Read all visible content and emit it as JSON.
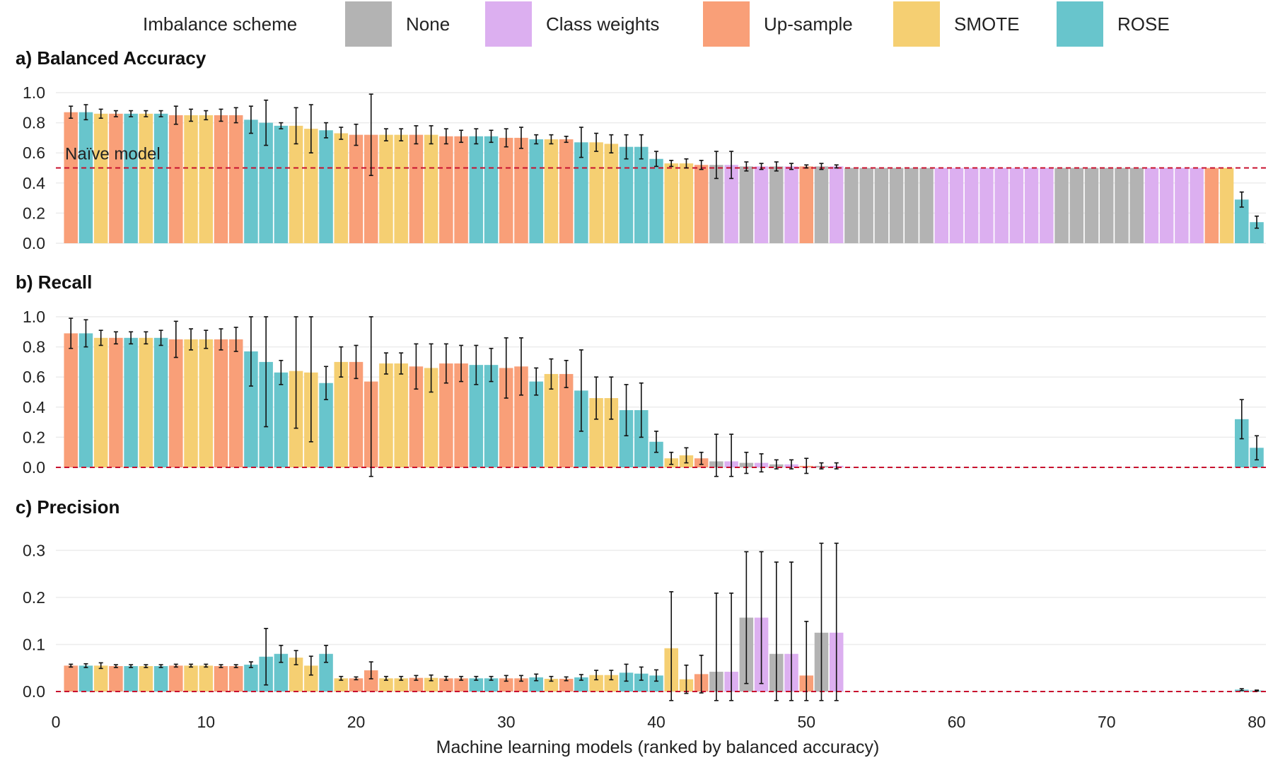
{
  "legend": {
    "title": "Imbalance scheme",
    "items": [
      {
        "key": "none",
        "label": "None",
        "color": "#b3b3b3"
      },
      {
        "key": "cw",
        "label": "Class weights",
        "color": "#dcaff0"
      },
      {
        "key": "up",
        "label": "Up-sample",
        "color": "#f99f78"
      },
      {
        "key": "smote",
        "label": "SMOTE",
        "color": "#f5cf72"
      },
      {
        "key": "rose",
        "label": "ROSE",
        "color": "#68c5cc"
      }
    ]
  },
  "chart_data": {
    "type": "bar",
    "xlabel": "Machine learning models (ranked by balanced accuracy)",
    "xlim": [
      0,
      80
    ],
    "xticks": [
      0,
      10,
      20,
      30,
      40,
      50,
      60,
      70,
      80
    ],
    "annotation": "Naïve model",
    "schemes": [
      "up",
      "rose",
      "smote",
      "up",
      "rose",
      "smote",
      "rose",
      "up",
      "smote",
      "smote",
      "up",
      "up",
      "rose",
      "rose",
      "rose",
      "smote",
      "smote",
      "rose",
      "smote",
      "up",
      "up",
      "smote",
      "smote",
      "up",
      "smote",
      "up",
      "up",
      "rose",
      "rose",
      "up",
      "up",
      "rose",
      "smote",
      "up",
      "rose",
      "smote",
      "smote",
      "rose",
      "rose",
      "rose",
      "smote",
      "smote",
      "up",
      "none",
      "cw",
      "none",
      "cw",
      "none",
      "cw",
      "up",
      "none",
      "cw",
      "none",
      "none",
      "none",
      "none",
      "none",
      "none",
      "cw",
      "cw",
      "cw",
      "cw",
      "cw",
      "cw",
      "cw",
      "cw",
      "none",
      "none",
      "none",
      "none",
      "none",
      "none",
      "cw",
      "cw",
      "cw",
      "cw",
      "up",
      "smote",
      "rose",
      "rose"
    ],
    "panels": [
      {
        "title": "a) Balanced Accuracy",
        "ylim": [
          0,
          1.0
        ],
        "yticks": [
          0.0,
          0.2,
          0.4,
          0.6,
          0.8,
          1.0
        ],
        "ytick_labels": [
          "0.0",
          "0.2",
          "0.4",
          "0.6",
          "0.8",
          "1.0"
        ],
        "reference_line": 0.5,
        "values": [
          0.87,
          0.87,
          0.86,
          0.86,
          0.86,
          0.86,
          0.86,
          0.85,
          0.85,
          0.85,
          0.85,
          0.85,
          0.82,
          0.8,
          0.78,
          0.78,
          0.76,
          0.75,
          0.73,
          0.72,
          0.72,
          0.72,
          0.72,
          0.72,
          0.72,
          0.71,
          0.71,
          0.71,
          0.71,
          0.7,
          0.7,
          0.69,
          0.69,
          0.69,
          0.67,
          0.67,
          0.66,
          0.64,
          0.64,
          0.56,
          0.53,
          0.53,
          0.52,
          0.52,
          0.52,
          0.51,
          0.51,
          0.51,
          0.51,
          0.51,
          0.51,
          0.51,
          0.5,
          0.5,
          0.5,
          0.5,
          0.5,
          0.5,
          0.5,
          0.5,
          0.5,
          0.5,
          0.5,
          0.5,
          0.5,
          0.5,
          0.5,
          0.5,
          0.5,
          0.5,
          0.5,
          0.5,
          0.5,
          0.5,
          0.5,
          0.5,
          0.5,
          0.5,
          0.29,
          0.14
        ],
        "errors": [
          0.04,
          0.05,
          0.03,
          0.02,
          0.02,
          0.02,
          0.02,
          0.06,
          0.04,
          0.03,
          0.04,
          0.05,
          0.09,
          0.15,
          0.02,
          0.12,
          0.16,
          0.05,
          0.04,
          0.07,
          0.27,
          0.04,
          0.04,
          0.06,
          0.06,
          0.05,
          0.04,
          0.05,
          0.04,
          0.06,
          0.07,
          0.03,
          0.03,
          0.02,
          0.1,
          0.06,
          0.06,
          0.08,
          0.08,
          0.05,
          0.02,
          0.03,
          0.03,
          0.09,
          0.09,
          0.03,
          0.02,
          0.03,
          0.02,
          0.01,
          0.02,
          0.01,
          0,
          0,
          0,
          0,
          0,
          0,
          0,
          0,
          0,
          0,
          0,
          0,
          0,
          0,
          0,
          0,
          0,
          0,
          0,
          0,
          0,
          0,
          0,
          0,
          0,
          0,
          0.05,
          0.04
        ]
      },
      {
        "title": "b) Recall",
        "ylim": [
          0,
          1.0
        ],
        "yticks": [
          0.0,
          0.2,
          0.4,
          0.6,
          0.8,
          1.0
        ],
        "ytick_labels": [
          "0.0",
          "0.2",
          "0.4",
          "0.6",
          "0.8",
          "1.0"
        ],
        "reference_line": 0.0,
        "values": [
          0.89,
          0.89,
          0.86,
          0.86,
          0.86,
          0.86,
          0.86,
          0.85,
          0.85,
          0.85,
          0.85,
          0.85,
          0.77,
          0.7,
          0.63,
          0.64,
          0.63,
          0.56,
          0.7,
          0.7,
          0.57,
          0.69,
          0.69,
          0.67,
          0.66,
          0.69,
          0.69,
          0.68,
          0.68,
          0.66,
          0.67,
          0.57,
          0.62,
          0.62,
          0.51,
          0.46,
          0.46,
          0.38,
          0.38,
          0.17,
          0.06,
          0.08,
          0.06,
          0.04,
          0.04,
          0.03,
          0.03,
          0.02,
          0.02,
          0.01,
          0.01,
          0.01,
          0,
          0,
          0,
          0,
          0,
          0,
          0,
          0,
          0,
          0,
          0,
          0,
          0,
          0,
          0,
          0,
          0,
          0,
          0,
          0,
          0,
          0,
          0,
          0,
          0,
          0,
          0.32,
          0.13
        ],
        "errors": [
          0.1,
          0.09,
          0.05,
          0.04,
          0.04,
          0.04,
          0.05,
          0.12,
          0.07,
          0.06,
          0.07,
          0.08,
          0.23,
          0.43,
          0.08,
          0.38,
          0.46,
          0.11,
          0.1,
          0.11,
          0.64,
          0.07,
          0.07,
          0.15,
          0.16,
          0.13,
          0.12,
          0.13,
          0.11,
          0.2,
          0.19,
          0.09,
          0.1,
          0.09,
          0.27,
          0.14,
          0.14,
          0.17,
          0.18,
          0.07,
          0.04,
          0.05,
          0.04,
          0.18,
          0.18,
          0.07,
          0.06,
          0.03,
          0.03,
          0.05,
          0.02,
          0.02,
          0,
          0,
          0,
          0,
          0,
          0,
          0,
          0,
          0,
          0,
          0,
          0,
          0,
          0,
          0,
          0,
          0,
          0,
          0,
          0,
          0,
          0,
          0,
          0,
          0,
          0,
          0.13,
          0.08
        ]
      },
      {
        "title": "c) Precision",
        "ylim": [
          0,
          0.32
        ],
        "yticks": [
          0.0,
          0.1,
          0.2,
          0.3
        ],
        "ytick_labels": [
          "0.0",
          "0.1",
          "0.2",
          "0.3"
        ],
        "reference_line": 0.0,
        "values": [
          0.055,
          0.055,
          0.055,
          0.054,
          0.054,
          0.054,
          0.054,
          0.055,
          0.055,
          0.055,
          0.054,
          0.054,
          0.057,
          0.074,
          0.08,
          0.072,
          0.055,
          0.08,
          0.028,
          0.028,
          0.045,
          0.028,
          0.028,
          0.029,
          0.029,
          0.028,
          0.028,
          0.028,
          0.028,
          0.028,
          0.028,
          0.03,
          0.027,
          0.027,
          0.03,
          0.035,
          0.035,
          0.04,
          0.038,
          0.034,
          0.092,
          0.026,
          0.037,
          0.042,
          0.042,
          0.157,
          0.157,
          0.08,
          0.08,
          0.034,
          0.125,
          0.125,
          0,
          0,
          0,
          0,
          0,
          0,
          0,
          0,
          0,
          0,
          0,
          0,
          0,
          0,
          0,
          0,
          0,
          0,
          0,
          0,
          0,
          0,
          0,
          0,
          0,
          0,
          0.004,
          0.002
        ],
        "errors": [
          0.003,
          0.004,
          0.006,
          0.003,
          0.003,
          0.003,
          0.003,
          0.003,
          0.003,
          0.003,
          0.003,
          0.003,
          0.006,
          0.06,
          0.018,
          0.015,
          0.02,
          0.018,
          0.004,
          0.003,
          0.018,
          0.004,
          0.004,
          0.005,
          0.006,
          0.004,
          0.004,
          0.004,
          0.004,
          0.006,
          0.006,
          0.007,
          0.005,
          0.004,
          0.006,
          0.01,
          0.01,
          0.018,
          0.014,
          0.012,
          0.12,
          0.03,
          0.04,
          0.167,
          0.167,
          0.14,
          0.14,
          0.195,
          0.195,
          0.115,
          0.19,
          0.19,
          0,
          0,
          0,
          0,
          0,
          0,
          0,
          0,
          0,
          0,
          0,
          0,
          0,
          0,
          0,
          0,
          0,
          0,
          0,
          0,
          0,
          0,
          0,
          0,
          0,
          0,
          0.002,
          0.001
        ]
      }
    ]
  }
}
